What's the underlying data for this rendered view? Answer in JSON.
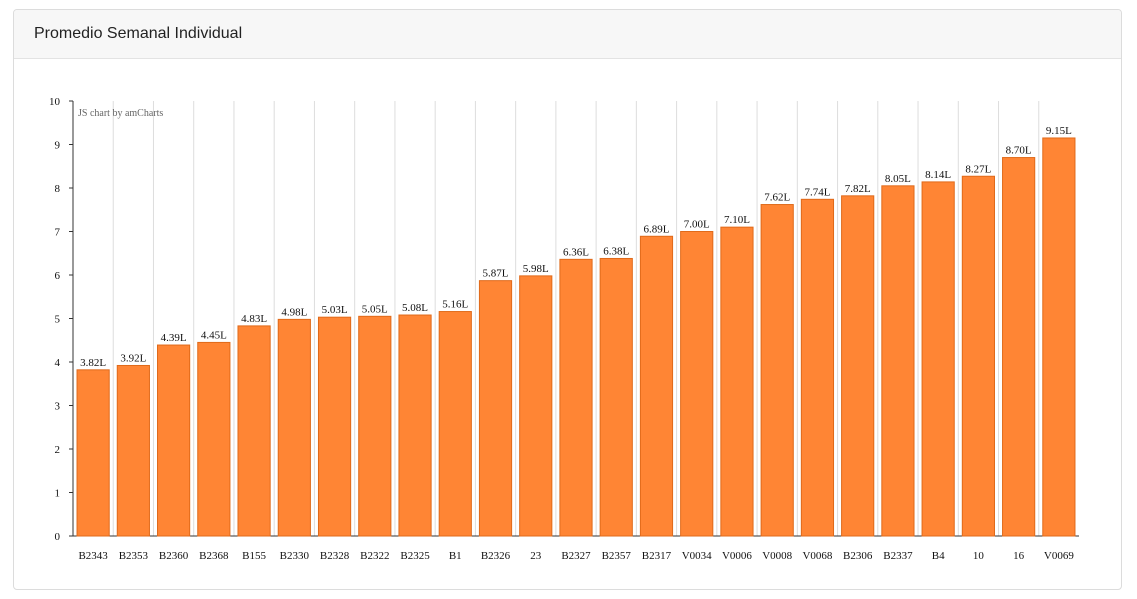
{
  "card": {
    "title": "Promedio Semanal Individual"
  },
  "credit": "JS chart by amCharts",
  "colors": {
    "bar_fill": "#ff8534",
    "bar_stroke": "#e06a1a",
    "grid": "#dddddd",
    "axis": "#333333"
  },
  "chart_data": {
    "type": "bar",
    "title": "",
    "xlabel": "",
    "ylabel": "",
    "ylim": [
      0,
      10
    ],
    "yticks": [
      "0",
      "1",
      "2",
      "3",
      "4",
      "5",
      "6",
      "7",
      "8",
      "9",
      "10"
    ],
    "grid": true,
    "categories": [
      "B2343",
      "B2353",
      "B2360",
      "B2368",
      "B155",
      "B2330",
      "B2328",
      "B2322",
      "B2325",
      "B1",
      "B2326",
      "23",
      "B2327",
      "B2357",
      "B2317",
      "V0034",
      "V0006",
      "V0008",
      "V0068",
      "B2306",
      "B2337",
      "B4",
      "10",
      "16",
      "V0069"
    ],
    "values": [
      3.82,
      3.92,
      4.39,
      4.45,
      4.83,
      4.98,
      5.03,
      5.05,
      5.08,
      5.16,
      5.87,
      5.98,
      6.36,
      6.38,
      6.89,
      7.0,
      7.1,
      7.62,
      7.74,
      7.82,
      8.05,
      8.14,
      8.27,
      8.7,
      9.15
    ],
    "labels": [
      "3.82L",
      "3.92L",
      "4.39L",
      "4.45L",
      "4.83L",
      "4.98L",
      "5.03L",
      "5.05L",
      "5.08L",
      "5.16L",
      "5.87L",
      "5.98L",
      "6.36L",
      "6.38L",
      "6.89L",
      "7.00L",
      "7.10L",
      "7.62L",
      "7.74L",
      "7.82L",
      "8.05L",
      "8.14L",
      "8.27L",
      "8.70L",
      "9.15L"
    ]
  }
}
